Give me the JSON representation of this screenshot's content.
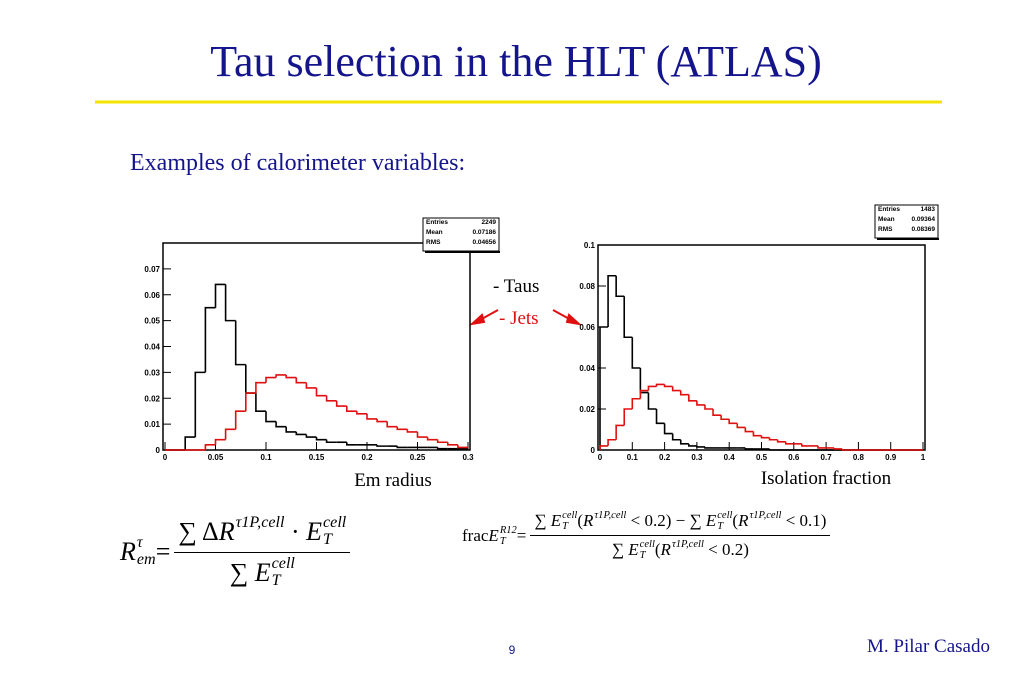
{
  "title": "Tau selection in the HLT (ATLAS)",
  "subtitle": "Examples of calorimeter variables:",
  "legend": [
    {
      "label": "- Taus",
      "color": "#000000"
    },
    {
      "label": "- Jets",
      "color": "#e01010"
    }
  ],
  "footer": {
    "page": "9",
    "author": "M. Pilar Casado"
  },
  "formulas": [
    {
      "lhs": [
        {
          "b": "R",
          "sup": "τ",
          "sub": "em"
        },
        " = "
      ],
      "num": [
        "∑ Δ",
        {
          "b": "R",
          "sup": "τ1P,cell"
        },
        " · ",
        {
          "b": "E",
          "sup": "cell",
          "sub": "T"
        }
      ],
      "den": [
        "∑ ",
        {
          "b": "E",
          "sup": "cell",
          "sub": "T"
        }
      ]
    },
    {
      "lhs": [
        "frac",
        {
          "b": "E",
          "sup": "R12",
          "sub": "T"
        },
        " = "
      ],
      "num": [
        "∑ ",
        {
          "b": "E",
          "sup": "cell",
          "sub": "T"
        },
        "(",
        {
          "b": "R",
          "sup": "τ1P,cell"
        },
        " < 0.2) − ∑ ",
        {
          "b": "E",
          "sup": "cell",
          "sub": "T"
        },
        "(",
        {
          "b": "R",
          "sup": "τ1P,cell"
        },
        " < 0.1)"
      ],
      "den": [
        "∑ ",
        {
          "b": "E",
          "sup": "cell",
          "sub": "T"
        },
        "(",
        {
          "b": "R",
          "sup": "τ1P,cell"
        },
        " < 0.2)"
      ]
    }
  ],
  "chart_data": [
    {
      "type": "histogram",
      "xlabel": "Em radius",
      "stats": [
        [
          "Entries",
          "2249"
        ],
        [
          "Mean",
          "0.07186"
        ],
        [
          "RMS",
          "0.04656"
        ]
      ],
      "bins": [
        0,
        0.01,
        0.02,
        0.03,
        0.04,
        0.05,
        0.06,
        0.07,
        0.08,
        0.09,
        0.1,
        0.11,
        0.12,
        0.13,
        0.14,
        0.15,
        0.16,
        0.17,
        0.18,
        0.19,
        0.2,
        0.21,
        0.22,
        0.23,
        0.24,
        0.25,
        0.26,
        0.27,
        0.28,
        0.29,
        0.3
      ],
      "series": [
        {
          "color": "#000000",
          "values": [
            0,
            0,
            0.005,
            0.03,
            0.055,
            0.064,
            0.05,
            0.033,
            0.022,
            0.015,
            0.011,
            0.009,
            0.007,
            0.006,
            0.005,
            0.004,
            0.003,
            0.003,
            0.002,
            0.002,
            0.002,
            0.0015,
            0.0015,
            0.001,
            0.001,
            0.001,
            0.001,
            0.0005,
            0.0005,
            0.0005
          ]
        },
        {
          "color": "#e01010",
          "values": [
            0,
            0,
            0,
            0,
            0.002,
            0.004,
            0.008,
            0.015,
            0.022,
            0.026,
            0.028,
            0.029,
            0.028,
            0.026,
            0.024,
            0.021,
            0.019,
            0.017,
            0.015,
            0.014,
            0.012,
            0.011,
            0.009,
            0.008,
            0.007,
            0.005,
            0.004,
            0.003,
            0.002,
            0.001
          ]
        }
      ],
      "xlim": [
        0,
        0.3
      ],
      "xticks": [
        0,
        0.05,
        0.1,
        0.15,
        0.2,
        0.25,
        0.3
      ],
      "ylim": [
        0,
        0.08
      ],
      "yticks": [
        0,
        0.01,
        0.02,
        0.03,
        0.04,
        0.05,
        0.06,
        0.07
      ]
    },
    {
      "type": "histogram",
      "xlabel": "Isolation fraction",
      "stats": [
        [
          "Entries",
          "1483"
        ],
        [
          "Mean",
          "0.09364"
        ],
        [
          "RMS",
          "0.08369"
        ]
      ],
      "bins": [
        0,
        0.025,
        0.05,
        0.075,
        0.1,
        0.125,
        0.15,
        0.175,
        0.2,
        0.225,
        0.25,
        0.275,
        0.3,
        0.325,
        0.35,
        0.375,
        0.4,
        0.425,
        0.45,
        0.475,
        0.5,
        0.525,
        0.55,
        0.575,
        0.6,
        0.625,
        0.65,
        0.675,
        0.7,
        0.725,
        0.75,
        0.775,
        0.8,
        0.825,
        0.85,
        0.875,
        0.9,
        0.925,
        0.95,
        0.975,
        1
      ],
      "series": [
        {
          "color": "#000000",
          "values": [
            0.06,
            0.085,
            0.075,
            0.055,
            0.04,
            0.028,
            0.02,
            0.013,
            0.008,
            0.005,
            0.003,
            0.002,
            0.0015,
            0.001,
            0.001,
            0.001,
            0.001,
            0.001,
            0.0005,
            0.0005,
            0.0005,
            0,
            0,
            0,
            0,
            0,
            0,
            0,
            0,
            0,
            0,
            0,
            0,
            0,
            0,
            0,
            0,
            0,
            0,
            0
          ]
        },
        {
          "color": "#e01010",
          "values": [
            0.002,
            0.005,
            0.012,
            0.02,
            0.025,
            0.029,
            0.031,
            0.032,
            0.031,
            0.029,
            0.027,
            0.024,
            0.022,
            0.02,
            0.017,
            0.015,
            0.013,
            0.011,
            0.009,
            0.007,
            0.006,
            0.005,
            0.004,
            0.003,
            0.003,
            0.002,
            0.002,
            0.001,
            0.001,
            0.0005,
            0,
            0,
            0,
            0,
            0,
            0,
            0,
            0,
            0,
            0
          ]
        }
      ],
      "xlim": [
        0,
        1
      ],
      "xticks": [
        0,
        0.1,
        0.2,
        0.3,
        0.4,
        0.5,
        0.6,
        0.7,
        0.8,
        0.9,
        1
      ],
      "ylim": [
        0,
        0.1
      ],
      "yticks": [
        0,
        0.02,
        0.04,
        0.06,
        0.08,
        0.1
      ]
    }
  ]
}
